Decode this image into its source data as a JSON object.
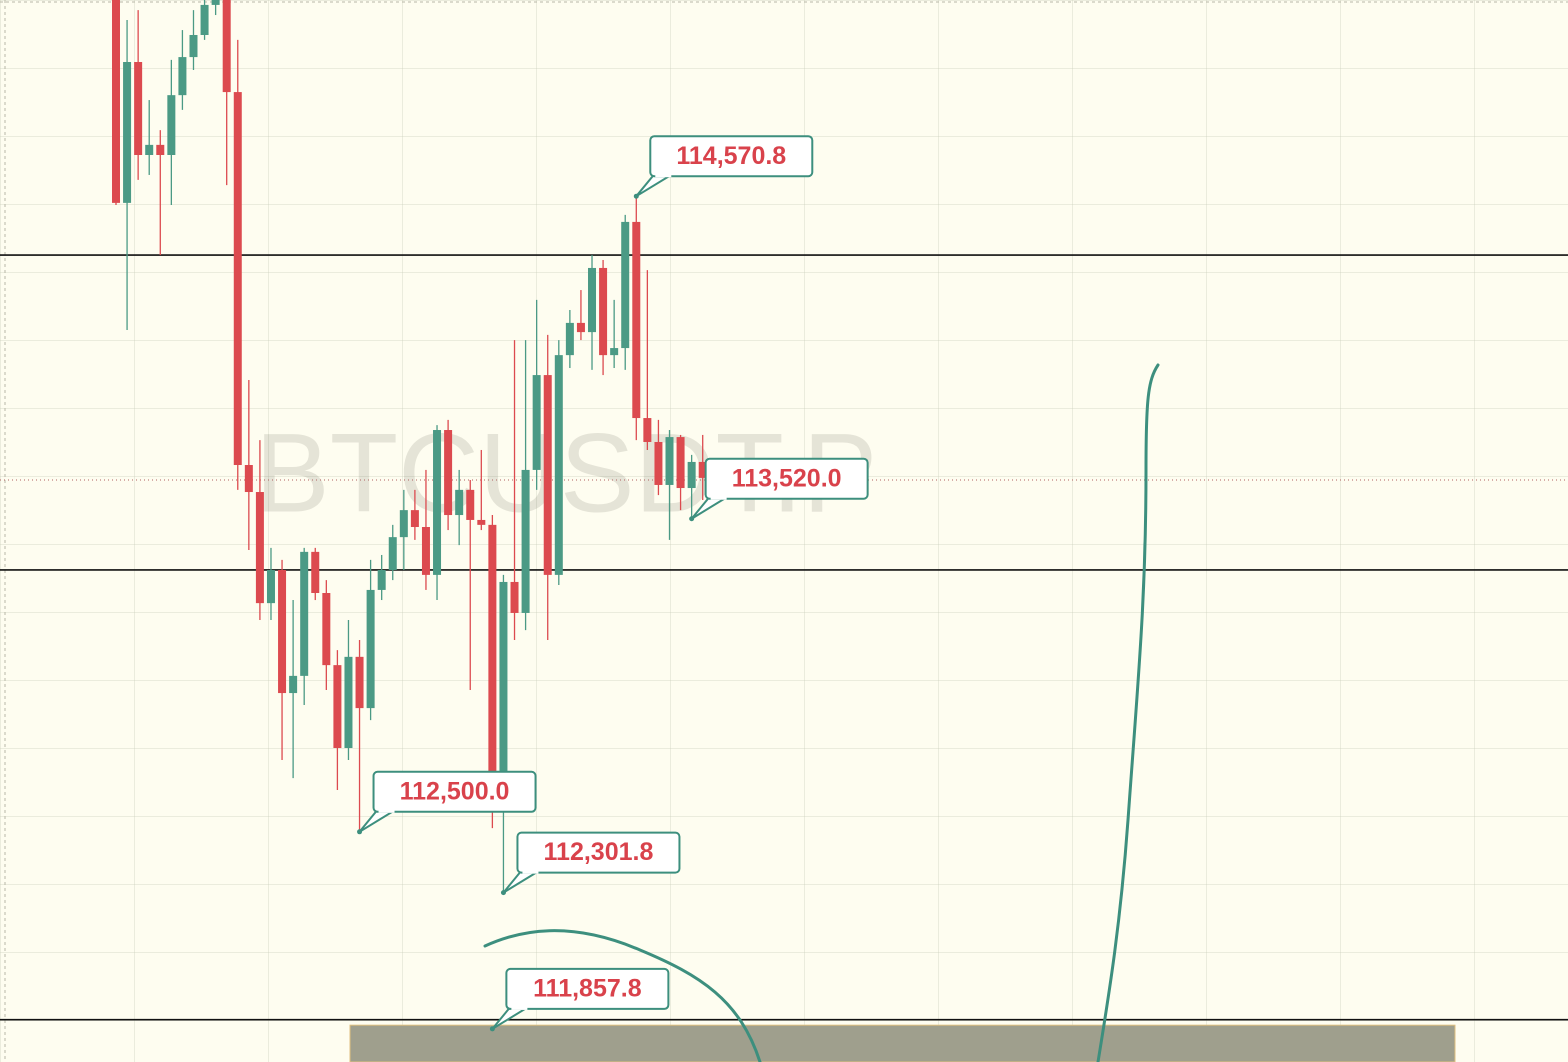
{
  "chart_data": {
    "type": "candlestick",
    "watermark": "BTCUSDT.P",
    "ylim": [
      111750,
      115210
    ],
    "up_color": "#4b9a85",
    "down_color": "#dc4a4f",
    "open": [
      115210,
      114549,
      115008,
      114705,
      114738,
      114705,
      114900,
      115024,
      115096,
      115194,
      115210,
      114910,
      113695,
      113607,
      113245,
      113353,
      112952,
      113008,
      113412,
      113278,
      113043,
      112773,
      113070,
      112903,
      113288,
      113353,
      113460,
      113548,
      113493,
      113337,
      113809,
      113532,
      113614,
      113516,
      113500,
      112604,
      113314,
      113213,
      113679,
      113988,
      113337,
      114053,
      114158,
      114128,
      114337,
      114053,
      114076,
      114487,
      113848,
      113770,
      113630,
      113786,
      113620,
      113705
    ],
    "high": [
      115210,
      115145,
      115177,
      114884,
      114786,
      115015,
      115112,
      115177,
      115210,
      115210,
      115210,
      115080,
      113972,
      113776,
      113425,
      113386,
      113255,
      113425,
      113425,
      113320,
      113092,
      113190,
      113125,
      113386,
      113402,
      113500,
      113614,
      113614,
      113679,
      113825,
      113842,
      113679,
      113646,
      113744,
      113532,
      113337,
      114102,
      114102,
      114233,
      114119,
      114102,
      114200,
      114265,
      114379,
      114363,
      114233,
      114510,
      114570.8,
      114330,
      113842,
      113809,
      113793,
      113728,
      113793
    ],
    "low": [
      114542,
      114135,
      114624,
      114640,
      114379,
      114542,
      114852,
      114982,
      115080,
      115161,
      114607,
      113614,
      113418,
      113190,
      113190,
      112734,
      112675,
      112913,
      113255,
      112962,
      112636,
      112734,
      112500,
      112864,
      113255,
      113320,
      113353,
      113451,
      113288,
      113255,
      113483,
      113434,
      112962,
      113483,
      112512,
      112301.8,
      113125,
      113157,
      113614,
      113125,
      113304,
      114011,
      114102,
      114005,
      113988,
      114011,
      114005,
      113776,
      113744,
      113597,
      113451,
      113548,
      113520,
      113581
    ],
    "close": [
      114549,
      115008,
      114705,
      114738,
      114705,
      114900,
      115024,
      115096,
      115194,
      115210,
      114910,
      113695,
      113607,
      113245,
      113353,
      112952,
      113008,
      113412,
      113278,
      113043,
      112773,
      113070,
      112903,
      113288,
      113353,
      113460,
      113548,
      113493,
      113337,
      113809,
      113532,
      113614,
      113516,
      113500,
      112604,
      113314,
      113213,
      113679,
      113988,
      113337,
      114053,
      114158,
      114128,
      114337,
      114053,
      114076,
      114487,
      113848,
      113770,
      113630,
      113786,
      113620,
      113705,
      113653
    ],
    "levels": [
      114379,
      113353,
      111888
    ],
    "last_price": 113646,
    "zone": [
      111750,
      111870
    ],
    "annotations": [
      {
        "label": "114,570.8",
        "value": 114570.8
      },
      {
        "label": "113,520.0",
        "value": 113520.0
      },
      {
        "label": "112,500.0",
        "value": 112500.0
      },
      {
        "label": "112,301.8",
        "value": 112301.8
      },
      {
        "label": "111,857.8",
        "value": 111857.8
      }
    ]
  }
}
